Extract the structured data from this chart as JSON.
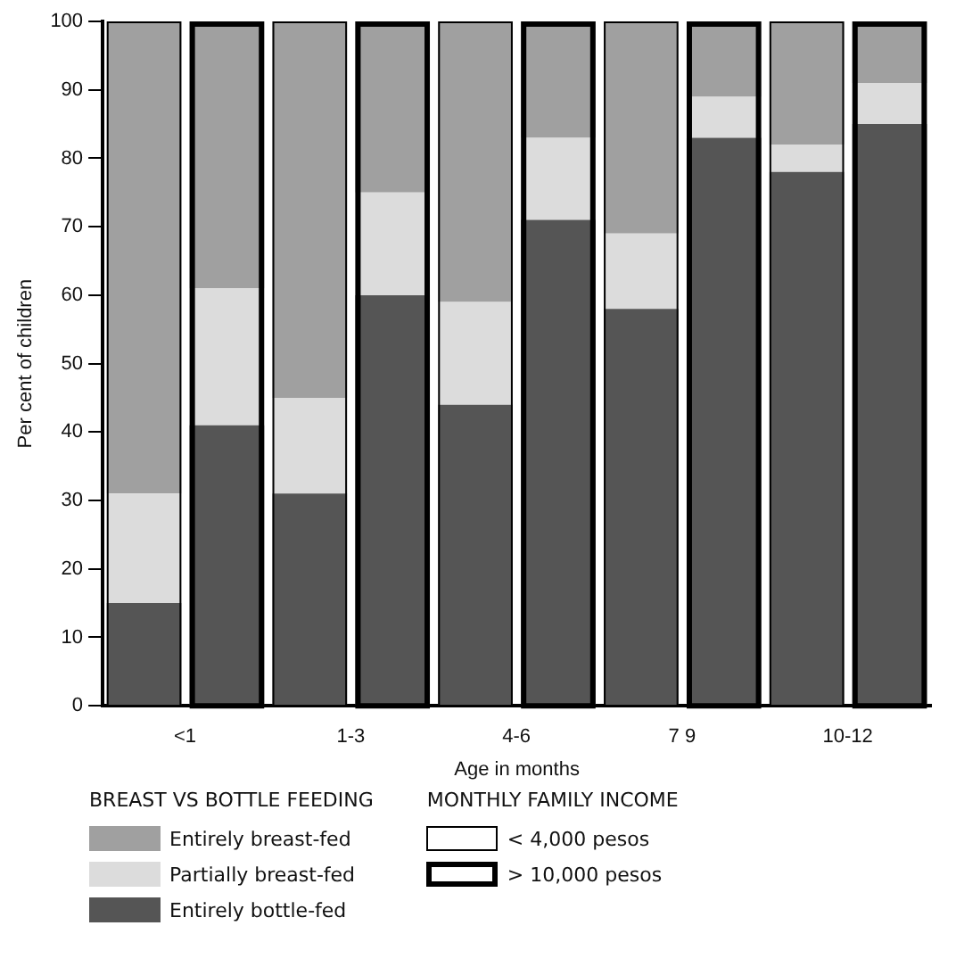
{
  "chart_data": {
    "type": "bar",
    "stacked": true,
    "xlabel": "Age in months",
    "ylabel": "Per cent of children",
    "categories": [
      "<1",
      null,
      "1-3",
      null,
      "4-6",
      null,
      "7 9",
      null,
      "10-12",
      null
    ],
    "ylim": [
      0,
      100
    ],
    "yticks": [
      0,
      10,
      20,
      30,
      40,
      50,
      60,
      70,
      80,
      90,
      100
    ],
    "legend": "bottom",
    "legend_title": "BREAST VS BOTTLE FEEDING",
    "annotations": [
      "MONTHLY FAMILY INCOME",
      "< 4,000 pesos",
      "> 10,000 pesos"
    ],
    "series": [
      {
        "name": "Entirely bottle-fed",
        "color": "#555555",
        "values": [
          15,
          41,
          31,
          60,
          44,
          71,
          58,
          83,
          78,
          85
        ]
      },
      {
        "name": "Partially breast-fed",
        "color": "#dcdcdc",
        "values": [
          16,
          20,
          14,
          15,
          15,
          12,
          11,
          6,
          4,
          6
        ]
      },
      {
        "name": "Entirely breast-fed",
        "color": "#a0a0a0",
        "values": [
          69,
          39,
          55,
          25,
          41,
          17,
          31,
          11,
          18,
          9
        ]
      }
    ]
  }
}
